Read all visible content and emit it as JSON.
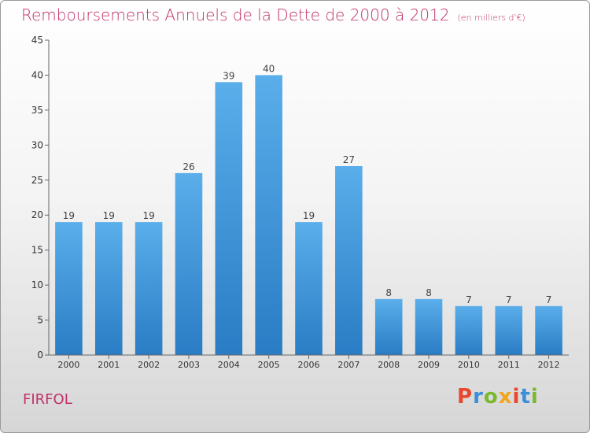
{
  "title": "Remboursements Annuels de la Dette de 2000 à 2012",
  "unit": "(en milliers d'€)",
  "town": "FIRFOL",
  "logo": {
    "text": "Proxiti",
    "colors": [
      "#e8462e",
      "#3a8fd8",
      "#7ab82e",
      "#f2a41c",
      "#e8462e",
      "#3a8fd8",
      "#7ab82e"
    ]
  },
  "chart_data": {
    "type": "bar",
    "categories": [
      "2000",
      "2001",
      "2002",
      "2003",
      "2004",
      "2005",
      "2006",
      "2007",
      "2008",
      "2009",
      "2010",
      "2011",
      "2012"
    ],
    "values": [
      19,
      19,
      19,
      26,
      39,
      40,
      19,
      27,
      8,
      8,
      7,
      7,
      7
    ],
    "ylim": [
      0,
      45
    ],
    "yticks": [
      0,
      5,
      10,
      15,
      20,
      25,
      30,
      35,
      40,
      45
    ],
    "grid": false,
    "bar_color": "#4a9be0"
  }
}
